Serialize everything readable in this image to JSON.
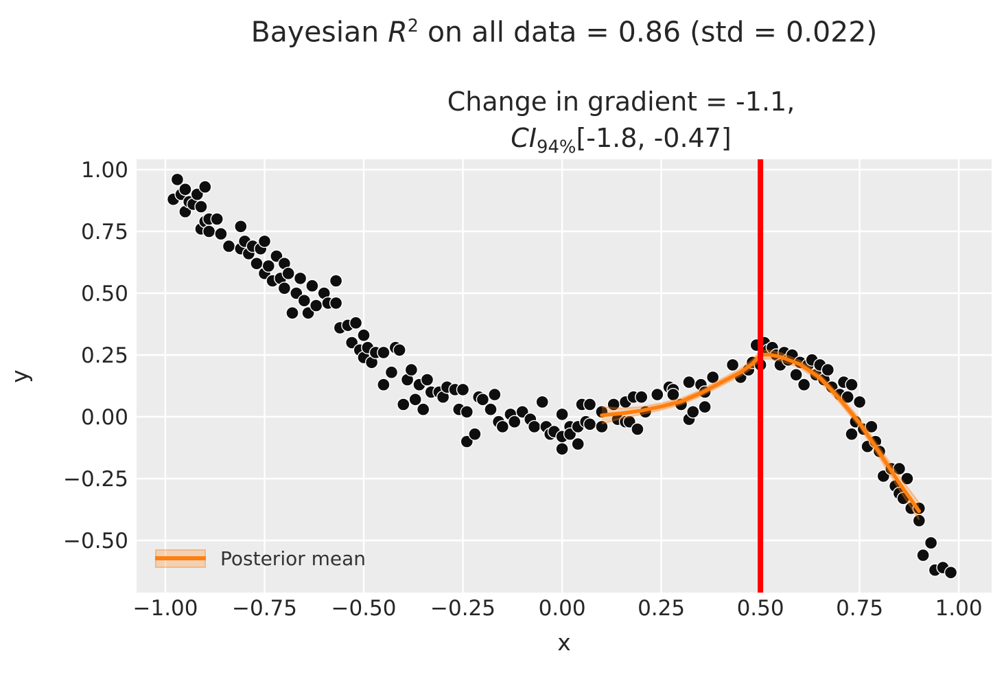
{
  "title": {
    "pre": "Bayesian ",
    "r_symbol": "R",
    "r_sup": "2",
    "post": " on all data = 0.86 (std = 0.022)"
  },
  "subtitle": {
    "line1": "Change in gradient = -1.1,",
    "ci_symbol": "CI",
    "ci_sub": "94%",
    "ci_interval": "[-1.8, -0.47]"
  },
  "legend": {
    "label": "Posterior mean"
  },
  "axes": {
    "xlabel": "x",
    "ylabel": "y",
    "x_tick_labels": [
      "−1.00",
      "−0.75",
      "−0.50",
      "−0.25",
      "0.00",
      "0.25",
      "0.50",
      "0.75",
      "1.00"
    ],
    "y_tick_labels": [
      "1.00",
      "0.75",
      "0.50",
      "0.25",
      "0.00",
      "−0.25",
      "−0.50"
    ]
  },
  "colors": {
    "figure_bg": "#ffffff",
    "plot_bg": "#ececec",
    "grid": "#ffffff",
    "scatter": "#0e0e0e",
    "scatter_edge": "#ffffff",
    "mean_line": "#ff7f0e",
    "band_fill": "rgba(255,127,14,0.25)",
    "band_edge": "rgba(255,127,14,0.35)",
    "changepoint_line": "#ff0000",
    "text": "#262626"
  },
  "chart_data": {
    "type": "scatter",
    "title": "Bayesian R^2 on all data = 0.86 (std = 0.022)",
    "subtitle": "Change in gradient = -1.1, CI_94% [-1.8, -0.47]",
    "xlabel": "x",
    "ylabel": "y",
    "xlim": [
      -1.0727,
      1.0829
    ],
    "ylim": [
      -0.7111,
      1.0417
    ],
    "x_tick_values": [
      -1.0,
      -0.75,
      -0.5,
      -0.25,
      0.0,
      0.25,
      0.5,
      0.75,
      1.0
    ],
    "y_tick_values": [
      1.0,
      0.75,
      0.5,
      0.25,
      0.0,
      -0.25,
      -0.5
    ],
    "grid": true,
    "legend_position": "lower left",
    "changepoint_x": 0.5,
    "points": [
      [
        -0.97,
        0.96
      ],
      [
        -0.98,
        0.88
      ],
      [
        -0.96,
        0.9
      ],
      [
        -0.95,
        0.92
      ],
      [
        -0.95,
        0.83
      ],
      [
        -0.94,
        0.87
      ],
      [
        -0.93,
        0.86
      ],
      [
        -0.92,
        0.9
      ],
      [
        -0.91,
        0.85
      ],
      [
        -0.91,
        0.76
      ],
      [
        -0.9,
        0.79
      ],
      [
        -0.9,
        0.93
      ],
      [
        -0.89,
        0.75
      ],
      [
        -0.89,
        0.8
      ],
      [
        -0.87,
        0.8
      ],
      [
        -0.86,
        0.74
      ],
      [
        -0.84,
        0.69
      ],
      [
        -0.81,
        0.77
      ],
      [
        -0.81,
        0.68
      ],
      [
        -0.8,
        0.71
      ],
      [
        -0.79,
        0.66
      ],
      [
        -0.78,
        0.69
      ],
      [
        -0.77,
        0.62
      ],
      [
        -0.76,
        0.68
      ],
      [
        -0.75,
        0.71
      ],
      [
        -0.75,
        0.58
      ],
      [
        -0.74,
        0.61
      ],
      [
        -0.73,
        0.55
      ],
      [
        -0.72,
        0.65
      ],
      [
        -0.71,
        0.56
      ],
      [
        -0.7,
        0.62
      ],
      [
        -0.7,
        0.52
      ],
      [
        -0.69,
        0.58
      ],
      [
        -0.68,
        0.42
      ],
      [
        -0.67,
        0.5
      ],
      [
        -0.66,
        0.56
      ],
      [
        -0.65,
        0.47
      ],
      [
        -0.64,
        0.42
      ],
      [
        -0.63,
        0.53
      ],
      [
        -0.62,
        0.45
      ],
      [
        -0.6,
        0.5
      ],
      [
        -0.59,
        0.46
      ],
      [
        -0.57,
        0.55
      ],
      [
        -0.57,
        0.46
      ],
      [
        -0.56,
        0.36
      ],
      [
        -0.54,
        0.37
      ],
      [
        -0.53,
        0.3
      ],
      [
        -0.52,
        0.38
      ],
      [
        -0.51,
        0.27
      ],
      [
        -0.5,
        0.33
      ],
      [
        -0.5,
        0.24
      ],
      [
        -0.49,
        0.28
      ],
      [
        -0.48,
        0.22
      ],
      [
        -0.47,
        0.26
      ],
      [
        -0.45,
        0.26
      ],
      [
        -0.45,
        0.13
      ],
      [
        -0.43,
        0.18
      ],
      [
        -0.42,
        0.28
      ],
      [
        -0.41,
        0.27
      ],
      [
        -0.4,
        0.05
      ],
      [
        -0.39,
        0.15
      ],
      [
        -0.38,
        0.19
      ],
      [
        -0.37,
        0.07
      ],
      [
        -0.36,
        0.13
      ],
      [
        -0.35,
        0.03
      ],
      [
        -0.34,
        0.15
      ],
      [
        -0.33,
        0.1
      ],
      [
        -0.31,
        0.1
      ],
      [
        -0.3,
        0.08
      ],
      [
        -0.29,
        0.12
      ],
      [
        -0.27,
        0.11
      ],
      [
        -0.26,
        0.03
      ],
      [
        -0.25,
        0.11
      ],
      [
        -0.24,
        -0.1
      ],
      [
        -0.24,
        0.02
      ],
      [
        -0.22,
        -0.07
      ],
      [
        -0.21,
        0.08
      ],
      [
        -0.2,
        0.07
      ],
      [
        -0.18,
        0.03
      ],
      [
        -0.17,
        0.09
      ],
      [
        -0.16,
        -0.02
      ],
      [
        -0.15,
        -0.04
      ],
      [
        -0.13,
        0.01
      ],
      [
        -0.12,
        -0.02
      ],
      [
        -0.1,
        0.02
      ],
      [
        -0.08,
        -0.01
      ],
      [
        -0.07,
        -0.04
      ],
      [
        -0.05,
        0.06
      ],
      [
        -0.04,
        -0.04
      ],
      [
        -0.03,
        -0.07
      ],
      [
        -0.02,
        -0.06
      ],
      [
        0.0,
        0.01
      ],
      [
        0.0,
        -0.08
      ],
      [
        0.0,
        -0.13
      ],
      [
        0.02,
        -0.04
      ],
      [
        0.02,
        -0.07
      ],
      [
        0.04,
        -0.04
      ],
      [
        0.04,
        -0.11
      ],
      [
        0.05,
        0.05
      ],
      [
        0.06,
        -0.02
      ],
      [
        0.07,
        0.05
      ],
      [
        0.07,
        -0.03
      ],
      [
        0.1,
        0.02
      ],
      [
        0.1,
        -0.04
      ],
      [
        0.13,
        0.05
      ],
      [
        0.14,
        -0.01
      ],
      [
        0.16,
        0.06
      ],
      [
        0.16,
        -0.02
      ],
      [
        0.18,
        0.08
      ],
      [
        0.17,
        -0.02
      ],
      [
        0.19,
        -0.05
      ],
      [
        0.2,
        0.08
      ],
      [
        0.21,
        0.02
      ],
      [
        0.24,
        0.09
      ],
      [
        0.27,
        0.12
      ],
      [
        0.28,
        0.11
      ],
      [
        0.28,
        0.09
      ],
      [
        0.3,
        0.05
      ],
      [
        0.32,
        0.14
      ],
      [
        0.32,
        -0.01
      ],
      [
        0.33,
        0.02
      ],
      [
        0.35,
        0.13
      ],
      [
        0.36,
        0.1
      ],
      [
        0.36,
        0.04
      ],
      [
        0.38,
        0.16
      ],
      [
        0.43,
        0.21
      ],
      [
        0.45,
        0.16
      ],
      [
        0.47,
        0.19
      ],
      [
        0.48,
        0.22
      ],
      [
        0.49,
        0.29
      ],
      [
        0.5,
        0.21
      ],
      [
        0.51,
        0.3
      ],
      [
        0.52,
        0.27
      ],
      [
        0.53,
        0.28
      ],
      [
        0.54,
        0.25
      ],
      [
        0.55,
        0.21
      ],
      [
        0.56,
        0.26
      ],
      [
        0.57,
        0.23
      ],
      [
        0.58,
        0.25
      ],
      [
        0.59,
        0.17
      ],
      [
        0.6,
        0.22
      ],
      [
        0.61,
        0.13
      ],
      [
        0.62,
        0.21
      ],
      [
        0.63,
        0.23
      ],
      [
        0.64,
        0.17
      ],
      [
        0.65,
        0.21
      ],
      [
        0.66,
        0.15
      ],
      [
        0.67,
        0.19
      ],
      [
        0.68,
        0.12
      ],
      [
        0.7,
        0.09
      ],
      [
        0.71,
        0.14
      ],
      [
        0.72,
        0.08
      ],
      [
        0.73,
        0.13
      ],
      [
        0.73,
        -0.07
      ],
      [
        0.74,
        -0.02
      ],
      [
        0.75,
        0.06
      ],
      [
        0.76,
        -0.05
      ],
      [
        0.77,
        -0.12
      ],
      [
        0.78,
        -0.04
      ],
      [
        0.79,
        -0.1
      ],
      [
        0.8,
        -0.14
      ],
      [
        0.81,
        -0.24
      ],
      [
        0.83,
        -0.21
      ],
      [
        0.84,
        -0.28
      ],
      [
        0.85,
        -0.21
      ],
      [
        0.85,
        -0.31
      ],
      [
        0.86,
        -0.33
      ],
      [
        0.87,
        -0.25
      ],
      [
        0.88,
        -0.37
      ],
      [
        0.9,
        -0.42
      ],
      [
        0.9,
        -0.37
      ],
      [
        0.91,
        -0.56
      ],
      [
        0.93,
        -0.51
      ],
      [
        0.94,
        -0.62
      ],
      [
        0.96,
        -0.61
      ],
      [
        0.98,
        -0.63
      ]
    ],
    "posterior_mean": {
      "x": [
        0.1,
        0.15,
        0.2,
        0.25,
        0.3,
        0.35,
        0.4,
        0.45,
        0.48,
        0.5,
        0.52,
        0.55,
        0.6,
        0.65,
        0.7,
        0.75,
        0.8,
        0.85,
        0.9
      ],
      "y": [
        0.006,
        0.014,
        0.025,
        0.042,
        0.062,
        0.096,
        0.138,
        0.18,
        0.215,
        0.25,
        0.252,
        0.243,
        0.212,
        0.158,
        0.072,
        -0.025,
        -0.145,
        -0.268,
        -0.382
      ],
      "band_halfwidth": [
        0.034,
        0.02,
        0.015,
        0.013,
        0.012,
        0.012,
        0.013,
        0.014,
        0.016,
        0.018,
        0.017,
        0.016,
        0.014,
        0.014,
        0.015,
        0.017,
        0.02,
        0.026,
        0.034
      ]
    }
  }
}
